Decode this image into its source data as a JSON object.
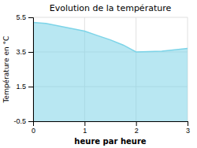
{
  "chart_data": {
    "type": "area",
    "title": "Evolution de la température",
    "xlabel": "heure par heure",
    "ylabel": "Température en °C",
    "x": [
      0.0,
      0.25,
      0.5,
      0.75,
      1.0,
      1.25,
      1.5,
      1.75,
      2.0,
      2.25,
      2.5,
      2.75,
      3.0
    ],
    "values": [
      5.2,
      5.15,
      5.0,
      4.85,
      4.7,
      4.45,
      4.2,
      3.9,
      3.5,
      3.52,
      3.55,
      3.62,
      3.7
    ],
    "color": "#7dd4e8",
    "xlim": [
      0,
      3
    ],
    "ylim": [
      -0.5,
      5.5
    ],
    "xticks": [
      0,
      1,
      2,
      3
    ],
    "yticks": [
      -0.5,
      1.5,
      3.5,
      5.5
    ],
    "grid": true
  }
}
